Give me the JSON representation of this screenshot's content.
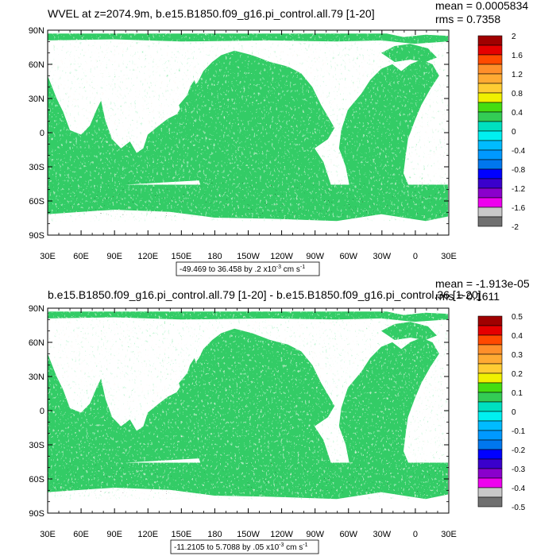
{
  "chart_data": [
    {
      "type": "heatmap",
      "title": "WVEL at z=2074.9m, b.e15.B1850.f09_g16.pi_control.all.79 [1-20]",
      "stats": {
        "mean": "mean = 0.0005834",
        "rms": "rms = 0.7358"
      },
      "x_ticks": [
        "30E",
        "60E",
        "90E",
        "120E",
        "150E",
        "180",
        "150W",
        "120W",
        "90W",
        "60W",
        "30W",
        "0",
        "30E"
      ],
      "y_ticks": [
        "90N",
        "60N",
        "30N",
        "0",
        "30S",
        "60S",
        "90S"
      ],
      "xlim": [
        30,
        390
      ],
      "ylim": [
        -90,
        90
      ],
      "colorbar_labels": [
        "2",
        "1.6",
        "1.2",
        "0.8",
        "0.4",
        "0",
        "-0.4",
        "-0.8",
        "-1.2",
        "-1.6",
        "-2"
      ],
      "colorbar_colors": [
        "#a00000",
        "#e50000",
        "#ff4a00",
        "#ff8f2a",
        "#ffaa33",
        "#ffcc33",
        "#f0f000",
        "#44dd11",
        "#33cc55",
        "#00e0c0",
        "#00f0f0",
        "#00bbff",
        "#0099ff",
        "#0077ee",
        "#0000ff",
        "#3a00cc",
        "#8a00cc",
        "#ee00ee",
        "#c8c8c8",
        "#707070"
      ],
      "caption": {
        "text": "-49.469 to 36.458 by .2 x10",
        "exp": "-3",
        "units": " cm s",
        "units_exp": "-1"
      }
    },
    {
      "type": "heatmap",
      "title": "b.e15.B1850.f09_g16.pi_control.all.79 [1-20] - b.e15.B1850.f09_g16.pi_control.36 [1-20]",
      "stats": {
        "mean": "mean = -1.913e-05",
        "rms": "rms = 0.1611"
      },
      "x_ticks": [
        "30E",
        "60E",
        "90E",
        "120E",
        "150E",
        "180",
        "150W",
        "120W",
        "90W",
        "60W",
        "30W",
        "0",
        "30E"
      ],
      "y_ticks": [
        "90N",
        "60N",
        "30N",
        "0",
        "30S",
        "60S",
        "90S"
      ],
      "xlim": [
        30,
        390
      ],
      "ylim": [
        -90,
        90
      ],
      "colorbar_labels": [
        "0.5",
        "0.4",
        "0.3",
        "0.2",
        "0.1",
        "0",
        "-0.1",
        "-0.2",
        "-0.3",
        "-0.4",
        "-0.5"
      ],
      "colorbar_colors": [
        "#a00000",
        "#e50000",
        "#ff4a00",
        "#ff8f2a",
        "#ffaa33",
        "#ffcc33",
        "#f0f000",
        "#44dd11",
        "#33cc55",
        "#00e0c0",
        "#00f0f0",
        "#00bbff",
        "#0099ff",
        "#0077ee",
        "#0000ff",
        "#3a00cc",
        "#8a00cc",
        "#ee00ee",
        "#c8c8c8",
        "#707070"
      ],
      "caption": {
        "text": "-11.2105 to 5.7088 by .05 x10",
        "exp": "-3",
        "units": " cm s",
        "units_exp": "-1"
      }
    }
  ]
}
